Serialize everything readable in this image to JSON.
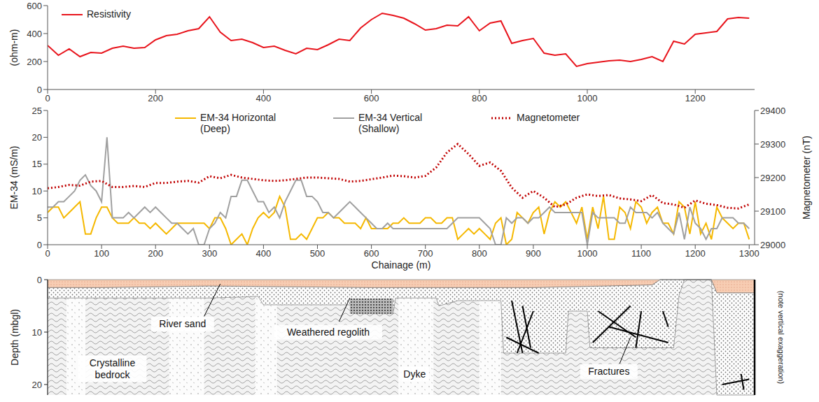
{
  "chart_data": [
    {
      "type": "line",
      "y_label": "(ohm-m)",
      "x": [
        0,
        20,
        40,
        60,
        80,
        100,
        120,
        140,
        160,
        180,
        200,
        220,
        240,
        260,
        280,
        300,
        320,
        340,
        360,
        380,
        400,
        420,
        440,
        460,
        480,
        500,
        520,
        540,
        560,
        580,
        600,
        620,
        640,
        660,
        680,
        700,
        720,
        740,
        760,
        780,
        800,
        820,
        840,
        860,
        880,
        900,
        920,
        940,
        960,
        980,
        1000,
        1020,
        1040,
        1060,
        1080,
        1100,
        1120,
        1140,
        1160,
        1180,
        1200,
        1220,
        1240,
        1260,
        1280,
        1300
      ],
      "series": [
        {
          "name": "Resistivity",
          "color": "#e8141c",
          "line_style": "solid",
          "values": [
            315,
            245,
            290,
            235,
            265,
            260,
            295,
            310,
            295,
            300,
            355,
            385,
            395,
            420,
            435,
            520,
            410,
            350,
            360,
            335,
            300,
            310,
            280,
            255,
            295,
            285,
            320,
            360,
            350,
            440,
            500,
            545,
            530,
            510,
            470,
            425,
            435,
            460,
            455,
            520,
            420,
            475,
            490,
            330,
            350,
            365,
            260,
            245,
            255,
            165,
            185,
            195,
            205,
            210,
            200,
            215,
            235,
            200,
            345,
            325,
            395,
            405,
            415,
            505,
            515,
            510
          ]
        }
      ],
      "xlim": [
        0,
        1310
      ],
      "xticks": [
        0,
        200,
        400,
        600,
        800,
        1000,
        1200
      ],
      "ylim": [
        0,
        600
      ],
      "yticks": [
        0,
        200,
        400,
        600
      ],
      "legend": "top-left"
    },
    {
      "type": "line",
      "x_label": "Chainage (m)",
      "y_label": "EM-34 (mS/m)",
      "y2_label": "Magnetometer (nT)",
      "x": [
        0,
        10,
        20,
        30,
        40,
        50,
        60,
        70,
        80,
        90,
        100,
        110,
        120,
        130,
        140,
        150,
        160,
        170,
        180,
        190,
        200,
        210,
        220,
        230,
        240,
        250,
        260,
        270,
        280,
        290,
        300,
        310,
        320,
        330,
        340,
        350,
        360,
        370,
        380,
        390,
        400,
        410,
        420,
        430,
        440,
        450,
        460,
        470,
        480,
        490,
        500,
        510,
        520,
        530,
        540,
        550,
        560,
        570,
        580,
        590,
        600,
        610,
        620,
        630,
        640,
        650,
        660,
        670,
        680,
        690,
        700,
        710,
        720,
        730,
        740,
        750,
        760,
        770,
        780,
        790,
        800,
        810,
        820,
        830,
        840,
        850,
        860,
        870,
        880,
        890,
        900,
        910,
        920,
        930,
        940,
        950,
        960,
        970,
        980,
        990,
        1000,
        1010,
        1020,
        1030,
        1040,
        1050,
        1060,
        1070,
        1080,
        1090,
        1100,
        1110,
        1120,
        1130,
        1140,
        1150,
        1160,
        1170,
        1180,
        1190,
        1200,
        1210,
        1220,
        1230,
        1240,
        1250,
        1260,
        1270,
        1280,
        1290,
        1300
      ],
      "series": [
        {
          "name": "EM-34 Horizontal (Deep)",
          "color": "#f5b800",
          "line_style": "solid",
          "values": [
            6,
            7,
            7,
            5,
            6,
            7,
            8,
            2,
            2,
            5,
            7,
            7,
            5,
            4,
            4,
            4,
            5,
            4,
            4,
            3,
            4,
            3,
            2,
            3,
            4,
            4,
            4,
            4,
            4,
            4,
            3,
            5,
            5,
            3,
            0,
            1,
            2,
            0,
            3,
            5,
            6,
            5,
            6,
            9,
            7,
            1,
            1,
            2,
            1,
            3,
            5,
            5,
            6,
            5,
            5,
            4,
            4,
            4,
            3,
            5,
            3,
            3,
            3,
            3,
            4,
            4,
            5,
            4,
            4,
            4,
            5,
            5,
            4,
            4,
            5,
            5,
            1,
            2,
            3,
            2,
            3,
            2,
            1,
            4,
            5,
            0,
            1,
            6,
            5,
            4,
            6,
            7,
            2,
            6,
            8,
            7,
            8,
            6,
            4,
            7,
            1,
            7,
            3,
            9,
            1,
            1,
            7,
            6,
            3,
            8,
            7,
            4,
            6,
            7,
            4,
            4,
            2,
            8,
            7,
            2,
            8,
            2,
            4,
            1,
            7,
            5,
            4,
            3,
            4,
            4,
            1
          ]
        },
        {
          "name": "EM-34 Vertical (Shallow)",
          "color": "#a0a0a0",
          "line_style": "solid",
          "values": [
            7,
            7,
            8,
            8,
            9,
            10,
            12,
            13,
            11,
            10,
            8,
            20,
            5,
            5,
            5,
            6,
            5,
            6,
            7,
            6,
            7,
            6,
            5,
            4,
            4,
            3,
            2,
            3,
            0,
            0,
            3,
            4,
            6,
            5,
            9,
            9,
            12,
            12,
            10,
            8,
            8,
            6,
            7,
            5,
            8,
            10,
            12,
            12,
            9,
            9,
            8,
            6,
            6,
            5,
            6,
            7,
            8,
            7,
            6,
            5,
            4,
            3,
            3,
            4,
            3,
            3,
            3,
            3,
            3,
            3,
            3,
            3,
            3,
            3,
            3,
            4,
            5,
            5,
            5,
            5,
            5,
            4,
            3,
            0,
            0,
            5,
            4,
            5,
            5,
            4,
            5,
            5,
            6,
            7,
            6,
            6,
            6,
            6,
            6,
            6,
            0,
            6,
            5,
            5,
            5,
            5,
            4,
            4,
            7,
            6,
            6,
            6,
            5,
            6,
            4,
            3,
            2,
            6,
            1,
            7,
            4,
            3,
            1,
            3,
            3,
            5,
            5,
            5,
            4,
            4,
            3
          ]
        },
        {
          "name": "Magnetometer",
          "color": "#c00000",
          "line_style": "dotted",
          "axis": "y2",
          "x": [
            0,
            20,
            40,
            60,
            80,
            100,
            120,
            140,
            160,
            180,
            200,
            220,
            240,
            260,
            280,
            300,
            320,
            340,
            360,
            380,
            400,
            420,
            440,
            460,
            480,
            500,
            520,
            540,
            560,
            580,
            600,
            620,
            640,
            660,
            680,
            700,
            720,
            740,
            760,
            780,
            800,
            820,
            840,
            860,
            880,
            900,
            920,
            940,
            960,
            980,
            1000,
            1020,
            1040,
            1060,
            1080,
            1100,
            1120,
            1140,
            1160,
            1180,
            1200,
            1220,
            1240,
            1260,
            1280,
            1300
          ],
          "values": [
            29168,
            29172,
            29178,
            29176,
            29188,
            29190,
            29172,
            29172,
            29175,
            29172,
            29184,
            29184,
            29188,
            29190,
            29185,
            29204,
            29198,
            29208,
            29200,
            29196,
            29192,
            29190,
            29192,
            29196,
            29200,
            29200,
            29198,
            29196,
            29188,
            29190,
            29195,
            29200,
            29206,
            29204,
            29200,
            29205,
            29230,
            29275,
            29300,
            29270,
            29235,
            29245,
            29220,
            29170,
            29140,
            29160,
            29140,
            29112,
            29120,
            29140,
            29150,
            29145,
            29148,
            29138,
            29135,
            29130,
            29148,
            29124,
            29120,
            29110,
            29132,
            29122,
            29118,
            29110,
            29108,
            29120
          ]
        }
      ],
      "xlim": [
        0,
        1310
      ],
      "xticks": [
        0,
        100,
        200,
        300,
        400,
        500,
        600,
        700,
        800,
        900,
        1000,
        1100,
        1200,
        1300
      ],
      "ylim": [
        0,
        25
      ],
      "yticks": [
        0,
        5,
        10,
        15,
        20,
        25
      ],
      "y2lim": [
        29000,
        29400
      ],
      "y2ticks": [
        29000,
        29100,
        29200,
        29300,
        29400
      ],
      "legend": "top"
    }
  ],
  "cross_section": {
    "y_label": "Depth (mbgl)",
    "ylim": [
      0,
      22
    ],
    "yticks": [
      0,
      10,
      20
    ],
    "labels": {
      "river_sand": "River sand",
      "regolith": "Weathered regolith",
      "bedrock": "Crystalline bedrock",
      "dyke": "Dyke",
      "fractures": "Fractures"
    },
    "note": "(note vertical exaggeration)"
  }
}
